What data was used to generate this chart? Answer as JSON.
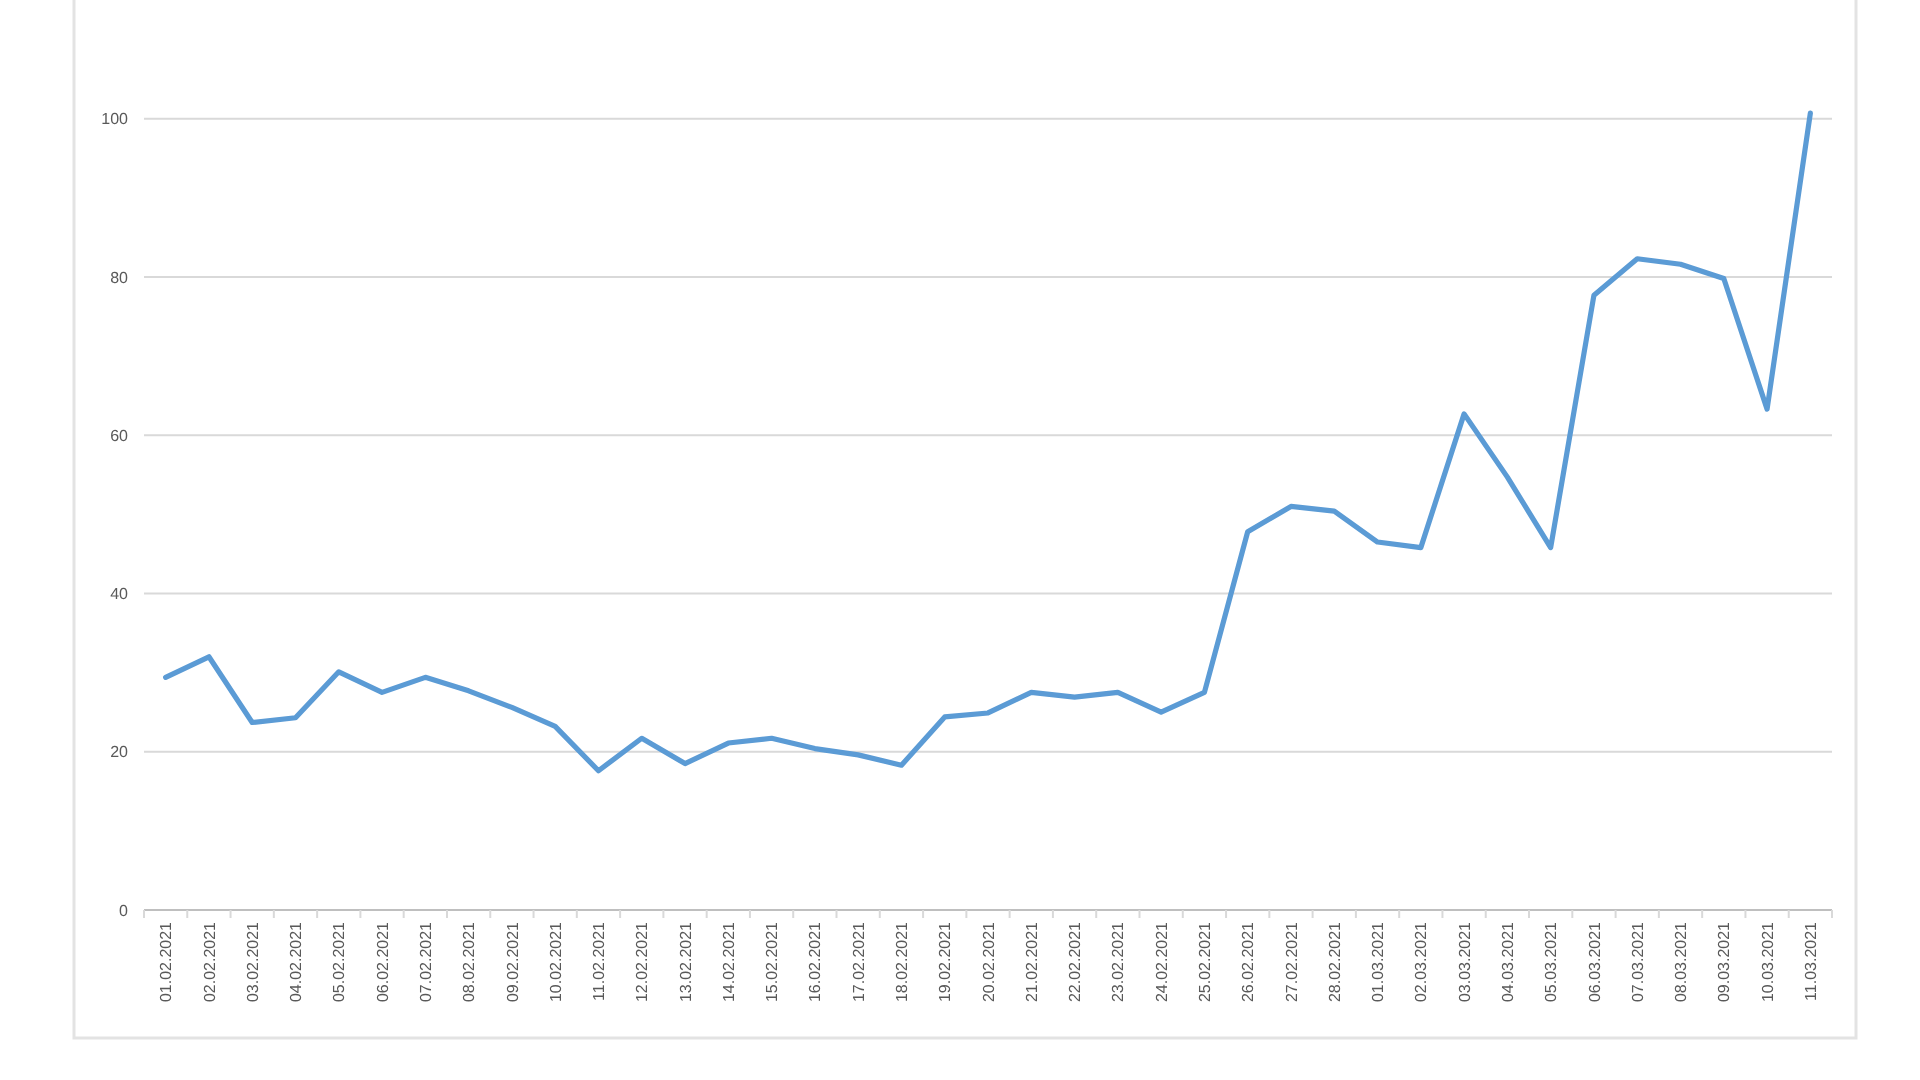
{
  "chart_data": {
    "type": "line",
    "categories": [
      "01.02.2021",
      "02.02.2021",
      "03.02.2021",
      "04.02.2021",
      "05.02.2021",
      "06.02.2021",
      "07.02.2021",
      "08.02.2021",
      "09.02.2021",
      "10.02.2021",
      "11.02.2021",
      "12.02.2021",
      "13.02.2021",
      "14.02.2021",
      "15.02.2021",
      "16.02.2021",
      "17.02.2021",
      "18.02.2021",
      "19.02.2021",
      "20.02.2021",
      "21.02.2021",
      "22.02.2021",
      "23.02.2021",
      "24.02.2021",
      "25.02.2021",
      "26.02.2021",
      "27.02.2021",
      "28.02.2021",
      "01.03.2021",
      "02.03.2021",
      "03.03.2021",
      "04.03.2021",
      "05.03.2021",
      "06.03.2021",
      "07.03.2021",
      "08.03.2021",
      "09.03.2021",
      "10.03.2021",
      "11.03.2021"
    ],
    "series": [
      {
        "color": "#5b9bd5",
        "values": [
          29.4,
          32.0,
          23.7,
          24.3,
          30.1,
          27.5,
          29.4,
          27.7,
          25.6,
          23.2,
          17.6,
          21.7,
          18.5,
          21.1,
          21.7,
          20.4,
          19.6,
          18.3,
          24.4,
          24.9,
          27.5,
          26.9,
          27.5,
          25.0,
          27.5,
          47.8,
          51.0,
          50.4,
          46.5,
          45.8,
          62.7,
          54.7,
          45.8,
          77.7,
          82.3,
          81.6,
          79.8,
          63.3,
          100.7
        ]
      }
    ],
    "ylim": [
      0,
      115
    ],
    "yticks": [
      0,
      20,
      40,
      60,
      80,
      100
    ],
    "grid": "y",
    "marker": "none",
    "line_style": "solid"
  }
}
